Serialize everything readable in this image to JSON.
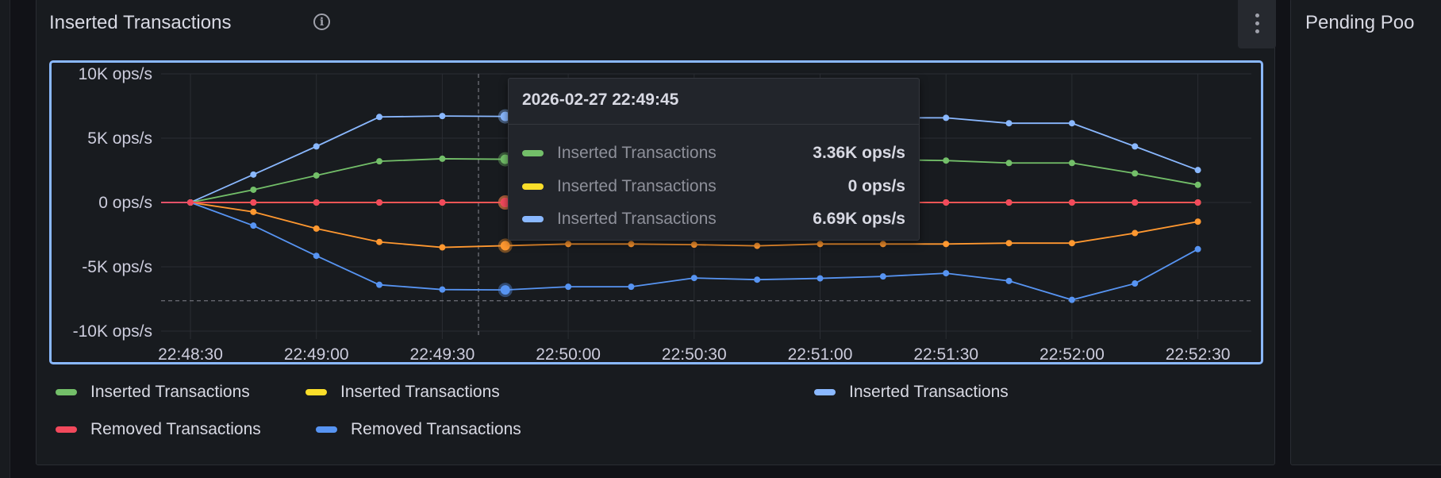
{
  "panel": {
    "title": "Inserted Transactions",
    "info_icon": "info-circle-icon",
    "menu_icon": "kebab-menu-icon"
  },
  "next_panel": {
    "title": "Pending Poo"
  },
  "legend": {
    "row1": [
      {
        "label": "Inserted Transactions",
        "color": "#73bf69"
      },
      {
        "label": "Inserted Transactions",
        "color": "#fade2a"
      },
      {
        "label": "Inserted Transactions",
        "color": "#8ab8ff"
      }
    ],
    "row2": [
      {
        "label": "Removed Transactions",
        "color": "#f2495c"
      },
      {
        "label": "Removed Transactions",
        "color": "#5794f2"
      }
    ]
  },
  "tooltip": {
    "time": "2026-02-27 22:49:45",
    "rows": [
      {
        "label": "Inserted Transactions",
        "value": "3.36K ops/s",
        "color": "#73bf69"
      },
      {
        "label": "Inserted Transactions",
        "value": "0 ops/s",
        "color": "#fade2a"
      },
      {
        "label": "Inserted Transactions",
        "value": "6.69K ops/s",
        "color": "#8ab8ff"
      }
    ]
  },
  "chart_data": {
    "type": "line",
    "ylim": [
      -10000,
      10000
    ],
    "y_ticks": [
      "10K ops/s",
      "5K ops/s",
      "0 ops/s",
      "-5K ops/s",
      "-10K ops/s"
    ],
    "x_ticks": [
      "22:48:30",
      "22:49:00",
      "22:49:30",
      "22:50:00",
      "22:50:30",
      "22:51:00",
      "22:51:30",
      "22:52:00",
      "22:52:30"
    ],
    "grid": true,
    "x": [
      "22:48:30",
      "22:48:45",
      "22:49:00",
      "22:49:15",
      "22:49:30",
      "22:49:45",
      "22:50:00",
      "22:50:15",
      "22:50:30",
      "22:50:45",
      "22:51:00",
      "22:51:15",
      "22:51:30",
      "22:51:45",
      "22:52:00",
      "22:52:15",
      "22:52:30"
    ],
    "hover_x": "22:49:45",
    "threshold": -7640,
    "series": [
      {
        "name": "Inserted Transactions",
        "color": "#8ab8ff",
        "values": [
          0,
          2170,
          4360,
          6650,
          6720,
          6690,
          6650,
          6720,
          6720,
          6650,
          6650,
          6580,
          6580,
          6160,
          6160,
          4360,
          2520
        ]
      },
      {
        "name": "Inserted Transactions",
        "color": "#73bf69",
        "values": [
          0,
          990,
          2100,
          3200,
          3400,
          3360,
          3330,
          3330,
          3330,
          3330,
          3330,
          3330,
          3260,
          3070,
          3070,
          2260,
          1370
        ]
      },
      {
        "name": "Inserted Transactions",
        "color": "#fade2a",
        "values": [
          0,
          0,
          0,
          0,
          0,
          0,
          0,
          0,
          0,
          0,
          0,
          0,
          0,
          0,
          0,
          0,
          0
        ]
      },
      {
        "color": "#ff9830",
        "values": [
          0,
          -730,
          -2030,
          -3070,
          -3490,
          -3360,
          -3230,
          -3230,
          -3280,
          -3370,
          -3230,
          -3230,
          -3230,
          -3160,
          -3160,
          -2380,
          -1490
        ]
      },
      {
        "name": "Removed Transactions",
        "color": "#5794f2",
        "values": [
          0,
          -1800,
          -4150,
          -6400,
          -6770,
          -6800,
          -6550,
          -6550,
          -5870,
          -6000,
          -5900,
          -5750,
          -5500,
          -6100,
          -7570,
          -6300,
          -3630
        ]
      },
      {
        "name": "Removed Transactions",
        "color": "#f2495c",
        "values": [
          0,
          0,
          0,
          0,
          0,
          0,
          0,
          0,
          0,
          0,
          0,
          0,
          0,
          0,
          0,
          0,
          0
        ]
      }
    ]
  }
}
